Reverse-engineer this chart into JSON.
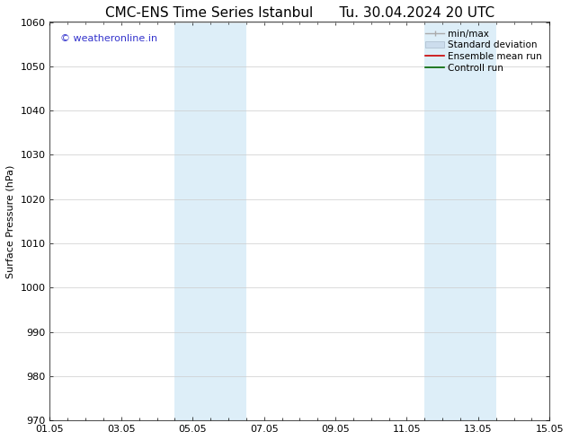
{
  "title_left": "CMC-ENS Time Series Istanbul",
  "title_right": "Tu. 30.04.2024 20 UTC",
  "ylabel": "Surface Pressure (hPa)",
  "ylim": [
    970,
    1060
  ],
  "yticks": [
    970,
    980,
    990,
    1000,
    1010,
    1020,
    1030,
    1040,
    1050,
    1060
  ],
  "xticks_labels": [
    "01.05",
    "03.05",
    "05.05",
    "07.05",
    "09.05",
    "11.05",
    "13.05",
    "15.05"
  ],
  "xticks_pos": [
    0,
    2,
    4,
    6,
    8,
    10,
    12,
    14
  ],
  "xlim": [
    0,
    14
  ],
  "shaded_regions": [
    {
      "xmin": 3.5,
      "xmax": 4.2,
      "color": "#ddeef8"
    },
    {
      "xmin": 4.2,
      "xmax": 5.5,
      "color": "#ddeef8"
    },
    {
      "xmin": 10.5,
      "xmax": 11.2,
      "color": "#ddeef8"
    },
    {
      "xmin": 11.2,
      "xmax": 12.5,
      "color": "#ddeef8"
    }
  ],
  "watermark_text": "© weatheronline.in",
  "watermark_color": "#3333cc",
  "watermark_fontsize": 8,
  "bg_color": "#ffffff",
  "plot_bg_color": "#ffffff",
  "grid_color": "#cccccc",
  "legend_items": [
    {
      "label": "min/max",
      "color": "#aaaaaa",
      "style": "minmax"
    },
    {
      "label": "Standard deviation",
      "color": "#ccdded",
      "style": "bar"
    },
    {
      "label": "Ensemble mean run",
      "color": "#cc0000",
      "style": "line"
    },
    {
      "label": "Controll run",
      "color": "#006600",
      "style": "line"
    }
  ],
  "title_fontsize": 11,
  "axis_fontsize": 8,
  "tick_fontsize": 8,
  "legend_fontsize": 7.5
}
